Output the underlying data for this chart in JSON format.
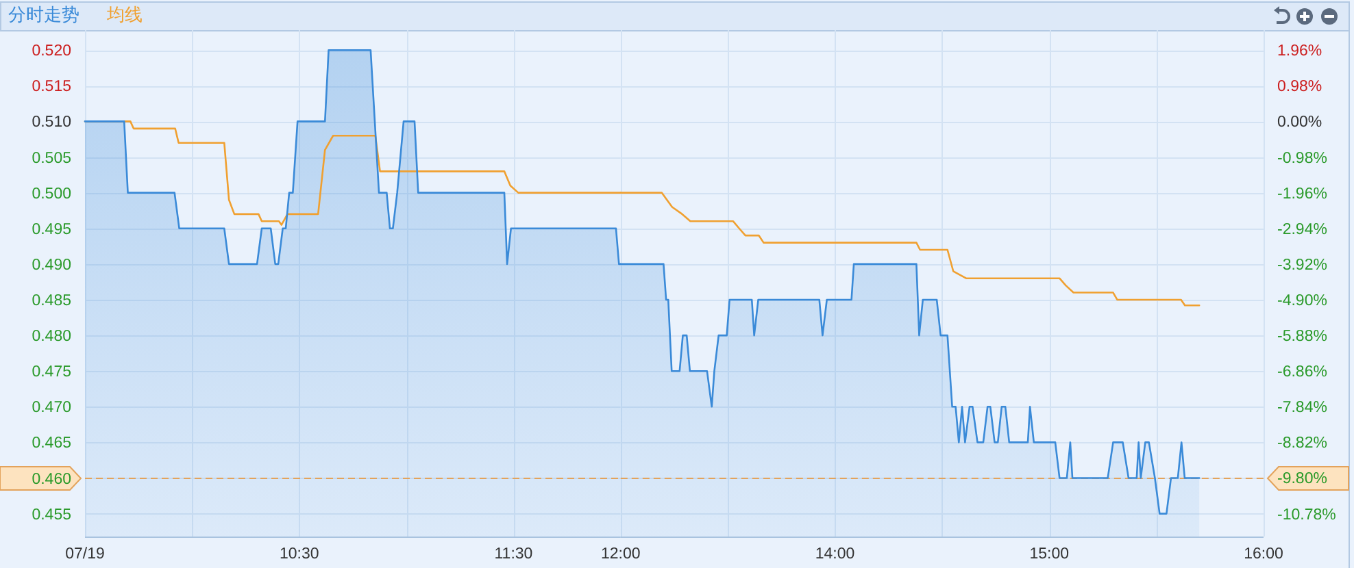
{
  "chart_data": [
    {
      "type": "area",
      "legend": "top left",
      "grid": true,
      "xlim": [
        9.5,
        12
      ],
      "xticks": [
        {
          "value": 9.5,
          "label": "07/19"
        },
        {
          "value": 10,
          "label": null
        },
        {
          "value": 10.5,
          "label": "10:30"
        },
        {
          "value": 11,
          "label": null
        },
        {
          "value": 11.5,
          "label": "11:30"
        },
        {
          "value": 12,
          "label": "12:00"
        }
      ],
      "ylim": [
        0.4518,
        0.5228
      ],
      "yticks": [
        {
          "value": 0.52,
          "label": "0.520"
        },
        {
          "value": 0.515,
          "label": "0.515"
        },
        {
          "value": 0.51,
          "label": "0.510"
        },
        {
          "value": 0.505,
          "label": "0.505"
        },
        {
          "value": 0.5,
          "label": "0.500"
        },
        {
          "value": 0.495,
          "label": "0.495"
        },
        {
          "value": 0.49,
          "label": "0.490"
        },
        {
          "value": 0.485,
          "label": "0.485"
        },
        {
          "value": 0.48,
          "label": "0.480"
        },
        {
          "value": 0.475,
          "label": "0.475"
        },
        {
          "value": 0.47,
          "label": "0.470"
        },
        {
          "value": 0.465,
          "label": "0.465"
        },
        {
          "value": 0.46,
          "label": "0.460"
        },
        {
          "value": 0.455,
          "label": "0.455"
        }
      ],
      "ref_lines": [
        {
          "axis": "y",
          "value": 0.46,
          "color": "#e3a35c",
          "line_style": "dashed"
        }
      ],
      "series": [
        {
          "name": "分时走势",
          "color": "#3a8ad8",
          "x": [
            9.5,
            9.683,
            9.7,
            9.918,
            9.94,
            10.15,
            10.172,
            10.303,
            10.325,
            10.367,
            10.388,
            10.402,
            10.423,
            10.437,
            10.453,
            10.47,
            10.492,
            10.62,
            10.637,
            10.833,
            10.872,
            10.908,
            10.923,
            10.937,
            10.957,
            10.987,
            11.038,
            11.055,
            11.457,
            11.47,
            11.488,
            11.978,
            11.992,
            12
          ],
          "values": [
            0.51,
            0.51,
            0.5,
            0.5,
            0.495,
            0.495,
            0.49,
            0.49,
            0.495,
            0.495,
            0.49,
            0.49,
            0.495,
            0.495,
            0.5,
            0.5,
            0.51,
            0.51,
            0.52,
            0.52,
            0.5,
            0.5,
            0.495,
            0.495,
            0.5,
            0.51,
            0.51,
            0.5,
            0.5,
            0.49,
            0.495,
            0.495,
            0.49,
            0.49
          ]
        },
        {
          "name": "均线",
          "type": "line",
          "color": "#f0a030",
          "x": [
            9.5,
            9.712,
            9.727,
            9.921,
            9.937,
            10.15,
            10.172,
            10.197,
            10.31,
            10.325,
            10.405,
            10.417,
            10.445,
            10.588,
            10.62,
            10.658,
            10.855,
            10.877,
            11.457,
            11.485,
            11.522,
            12
          ],
          "values": [
            0.51,
            0.51,
            0.509,
            0.509,
            0.507,
            0.507,
            0.499,
            0.497,
            0.497,
            0.496,
            0.496,
            0.4955,
            0.497,
            0.497,
            0.506,
            0.508,
            0.508,
            0.503,
            0.503,
            0.501,
            0.5,
            0.5
          ]
        }
      ]
    },
    {
      "type": "area",
      "grid": true,
      "xlim": [
        13,
        16
      ],
      "xticks": [
        {
          "value": 13,
          "label": null
        },
        {
          "value": 13.5,
          "label": null
        },
        {
          "value": 14,
          "label": "14:00"
        },
        {
          "value": 14.5,
          "label": null
        },
        {
          "value": 15,
          "label": "15:00"
        },
        {
          "value": 15.5,
          "label": null
        },
        {
          "value": 16,
          "label": "16:00"
        }
      ],
      "ylim": [
        0.4518,
        0.5228
      ],
      "y2lim": [
        -11.41,
        2.51
      ],
      "y2ticks": [
        {
          "value": 1.96,
          "label": "1.96%"
        },
        {
          "value": 0.98,
          "label": "0.98%"
        },
        {
          "value": 0,
          "label": "0.00%"
        },
        {
          "value": -0.98,
          "label": "-0.98%"
        },
        {
          "value": -1.96,
          "label": "-1.96%"
        },
        {
          "value": -2.94,
          "label": "-2.94%"
        },
        {
          "value": -3.92,
          "label": "-3.92%"
        },
        {
          "value": -4.9,
          "label": "-4.90%"
        },
        {
          "value": -5.88,
          "label": "-5.88%"
        },
        {
          "value": -6.86,
          "label": "-6.86%"
        },
        {
          "value": -7.84,
          "label": "-7.84%"
        },
        {
          "value": -8.82,
          "label": "-8.82%"
        },
        {
          "value": -9.8,
          "label": "-9.80%"
        },
        {
          "value": -10.78,
          "label": "-10.78%"
        }
      ],
      "ref_lines": [
        {
          "axis": "y2",
          "value": -9.8,
          "color": "#e3a35c",
          "line_style": "dashed"
        }
      ],
      "series": [
        {
          "color": "#3a8ad8",
          "x": [
            13,
            13.2,
            13.212,
            13.222,
            13.238,
            13.275,
            13.29,
            13.308,
            13.323,
            13.403,
            13.425,
            13.437,
            13.457,
            13.495,
            13.508,
            13.612,
            13.623,
            13.642,
            13.927,
            13.942,
            13.962,
            14.077,
            14.088,
            14.38,
            14.393,
            14.41,
            14.475,
            14.493,
            14.525,
            14.547,
            14.563,
            14.578,
            14.593,
            14.607,
            14.628,
            14.642,
            14.665,
            14.692,
            14.712,
            14.725,
            14.745,
            14.76,
            14.778,
            14.795,
            14.813,
            14.9,
            14.91,
            14.928,
            15.028,
            15.048,
            15.082,
            15.098,
            15.108,
            15.273,
            15.298,
            15.343,
            15.37,
            15.408,
            15.417,
            15.427,
            15.448,
            15.465,
            15.493,
            15.515,
            15.547,
            15.568,
            15.6,
            15.617,
            15.632,
            15.7
          ],
          "values": [
            0.49,
            0.49,
            0.485,
            0.485,
            0.475,
            0.475,
            0.48,
            0.48,
            0.475,
            0.475,
            0.47,
            0.475,
            0.48,
            0.48,
            0.485,
            0.485,
            0.48,
            0.485,
            0.485,
            0.48,
            0.485,
            0.485,
            0.49,
            0.49,
            0.48,
            0.485,
            0.485,
            0.48,
            0.48,
            0.47,
            0.47,
            0.465,
            0.47,
            0.465,
            0.47,
            0.47,
            0.465,
            0.465,
            0.47,
            0.47,
            0.465,
            0.465,
            0.47,
            0.47,
            0.465,
            0.465,
            0.47,
            0.465,
            0.465,
            0.46,
            0.46,
            0.465,
            0.46,
            0.46,
            0.465,
            0.465,
            0.46,
            0.46,
            0.465,
            0.46,
            0.465,
            0.465,
            0.46,
            0.455,
            0.455,
            0.46,
            0.46,
            0.465,
            0.46,
            0.46
          ]
        },
        {
          "type": "line",
          "color": "#f0a030",
          "x": [
            13,
            13.192,
            13.24,
            13.287,
            13.325,
            13.525,
            13.553,
            13.582,
            13.645,
            13.667,
            14.38,
            14.397,
            14.525,
            14.552,
            14.612,
            15.048,
            15.077,
            15.113,
            15.298,
            15.317,
            15.615,
            15.633,
            15.7
          ],
          "values": [
            0.5,
            0.5,
            0.498,
            0.497,
            0.496,
            0.496,
            0.495,
            0.494,
            0.494,
            0.493,
            0.493,
            0.492,
            0.492,
            0.489,
            0.488,
            0.488,
            0.487,
            0.486,
            0.486,
            0.485,
            0.485,
            0.4842,
            0.4842
          ]
        }
      ]
    }
  ]
}
